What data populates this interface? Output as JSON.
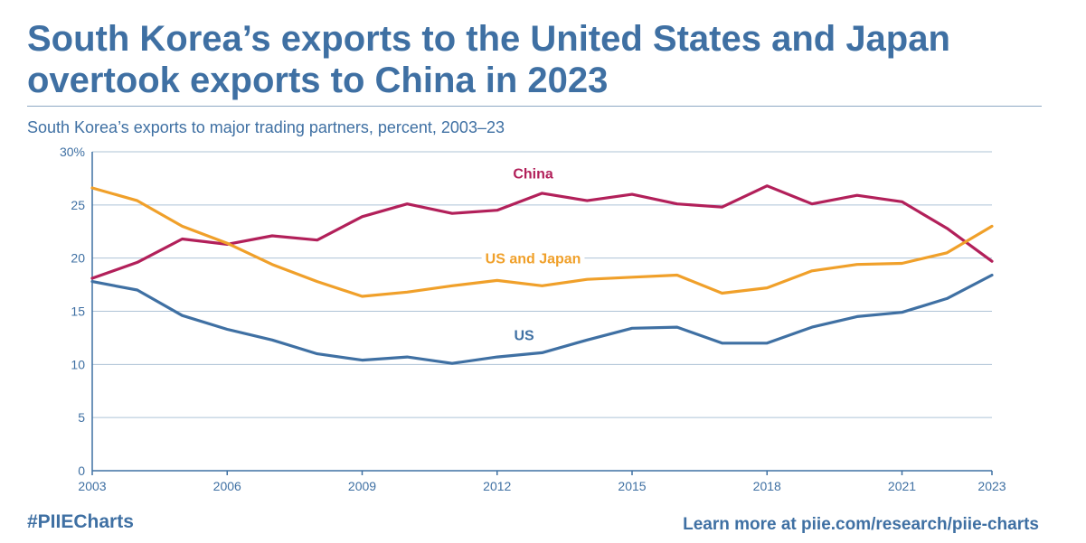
{
  "title": "South Korea’s exports to the United States and Japan overtook exports to China in 2023",
  "subtitle": "South Korea’s exports to major trading partners, percent, 2003–23",
  "footer": {
    "hashtag": "#PIIECharts",
    "link_text": "Learn more at piie.com/research/piie-charts"
  },
  "colors": {
    "text": "#3f70a3",
    "grid": "#aec3d6",
    "axis": "#3f70a3"
  },
  "chart_data": {
    "type": "line",
    "x": [
      2003,
      2004,
      2005,
      2006,
      2007,
      2008,
      2009,
      2010,
      2011,
      2012,
      2013,
      2014,
      2015,
      2016,
      2017,
      2018,
      2019,
      2020,
      2021,
      2022,
      2023
    ],
    "xlim": [
      2003,
      2023
    ],
    "ylim": [
      0,
      30
    ],
    "x_ticks": [
      2003,
      2006,
      2009,
      2012,
      2015,
      2018,
      2021,
      2023
    ],
    "y_ticks": [
      0,
      5,
      10,
      15,
      20,
      25,
      30
    ],
    "y_tick_labels": [
      "0",
      "5",
      "10",
      "15",
      "20",
      "25",
      "30%"
    ],
    "grid": true,
    "series": [
      {
        "name": "China",
        "color": "#b2205a",
        "values": [
          18.1,
          19.6,
          21.8,
          21.3,
          22.1,
          21.7,
          23.9,
          25.1,
          24.2,
          24.5,
          26.1,
          25.4,
          26.0,
          25.1,
          24.8,
          26.8,
          25.1,
          25.9,
          25.3,
          22.8,
          19.7
        ]
      },
      {
        "name": "US and Japan",
        "color": "#f0a02a",
        "values": [
          26.6,
          25.4,
          23.0,
          21.4,
          19.4,
          17.8,
          16.4,
          16.8,
          17.4,
          17.9,
          17.4,
          18.0,
          18.2,
          18.4,
          16.7,
          17.2,
          18.8,
          19.4,
          19.5,
          20.5,
          23.0
        ]
      },
      {
        "name": "US",
        "color": "#3f70a3",
        "values": [
          17.8,
          17.0,
          14.6,
          13.3,
          12.3,
          11.0,
          10.4,
          10.7,
          10.1,
          10.7,
          11.1,
          12.3,
          13.4,
          13.5,
          12.0,
          12.0,
          13.5,
          14.5,
          14.9,
          16.2,
          18.4
        ]
      }
    ],
    "series_labels": [
      {
        "text": "China",
        "series": 0,
        "at_x": 2012.8,
        "at_y": 28.0
      },
      {
        "text": "US and Japan",
        "series": 1,
        "at_x": 2012.8,
        "at_y": 20.0
      },
      {
        "text": "US",
        "series": 2,
        "at_x": 2012.6,
        "at_y": 12.8
      }
    ]
  }
}
